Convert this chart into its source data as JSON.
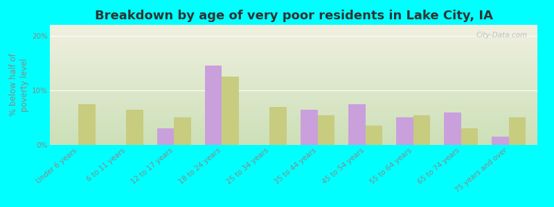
{
  "title": "Breakdown by age of very poor residents in Lake City, IA",
  "ylabel": "% below half of\npoverty level",
  "categories": [
    "Under 6 years",
    "6 to 11 years",
    "12 to 17 years",
    "18 to 24 years",
    "25 to 34 years",
    "35 to 44 years",
    "45 to 54 years",
    "55 to 64 years",
    "65 to 74 years",
    "75 years and over"
  ],
  "lake_city": [
    0,
    0,
    3.0,
    14.5,
    0,
    6.5,
    7.5,
    5.0,
    6.0,
    1.5
  ],
  "iowa": [
    7.5,
    6.5,
    5.0,
    12.5,
    7.0,
    5.5,
    3.5,
    5.5,
    3.0,
    5.0
  ],
  "lake_city_color": "#c9a0dc",
  "iowa_color": "#c8cc7f",
  "background_color": "#00ffff",
  "plot_bg_top": "#f0f0e0",
  "plot_bg_bottom": "#cce0b8",
  "ylim": [
    0,
    22
  ],
  "yticks": [
    0,
    10,
    20
  ],
  "ytick_labels": [
    "0%",
    "10%",
    "20%"
  ],
  "bar_width": 0.35,
  "title_fontsize": 13,
  "axis_label_fontsize": 8.5,
  "tick_fontsize": 7.5,
  "legend_fontsize": 9,
  "watermark": "City-Data.com"
}
